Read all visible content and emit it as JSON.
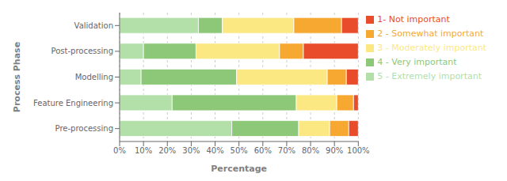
{
  "chart_data": {
    "type": "bar",
    "orientation": "horizontal",
    "stacked": true,
    "categories": [
      "Pre-processing",
      "Feature Engineering",
      "Modelling",
      "Post-processing",
      "Validation"
    ],
    "series": [
      {
        "name": "5 - Extremely important",
        "color": "#b2e0a8",
        "values": [
          47,
          22,
          9,
          10,
          33
        ]
      },
      {
        "name": "4 - Very important",
        "color": "#8cc878",
        "values": [
          28,
          52,
          40,
          22,
          10
        ]
      },
      {
        "name": "3 - Moderately important",
        "color": "#fce883",
        "values": [
          13,
          17,
          38,
          35,
          30
        ]
      },
      {
        "name": "2 - Somewhat important",
        "color": "#f7a830",
        "values": [
          8,
          7,
          8,
          10,
          20
        ]
      },
      {
        "name": "1- Not important",
        "color": "#e84c2b",
        "values": [
          4,
          2,
          5,
          23,
          7
        ]
      }
    ],
    "xlabel": "Percentage",
    "ylabel": "Process Phase",
    "xlim": [
      0,
      100
    ],
    "xticks": [
      {
        "value": 0,
        "label": "0%"
      },
      {
        "value": 10,
        "label": "10%"
      },
      {
        "value": 20,
        "label": "20%"
      },
      {
        "value": 30,
        "label": "30%"
      },
      {
        "value": 40,
        "label": "40%"
      },
      {
        "value": 50,
        "label": "50%"
      },
      {
        "value": 60,
        "label": "60%"
      },
      {
        "value": 70,
        "label": "70%"
      },
      {
        "value": 80,
        "label": "80%"
      },
      {
        "value": 90,
        "label": "90%"
      },
      {
        "value": 100,
        "label": "100%"
      }
    ],
    "grid": true,
    "legend": "right"
  }
}
